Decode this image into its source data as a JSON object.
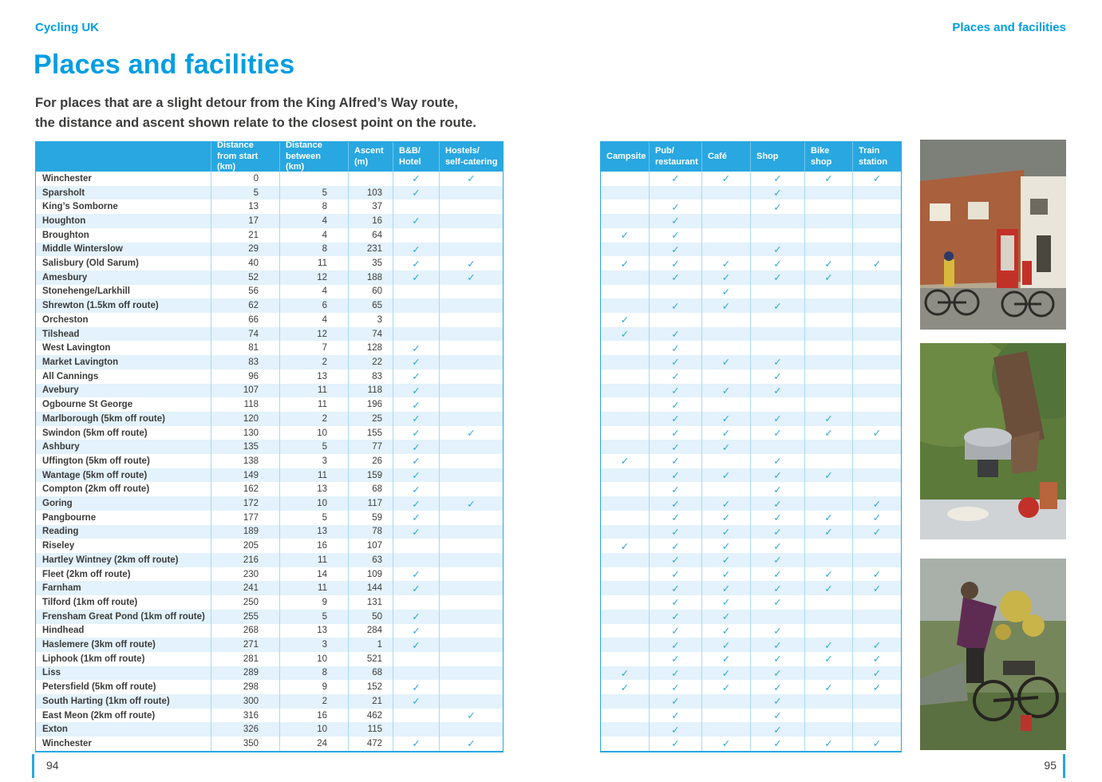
{
  "page": {
    "header_left": "Cycling UK",
    "header_right": "Places and facilities",
    "title": "Places and facilities",
    "intro_line1": "For places that are a slight detour from the King Alfred’s Way route,",
    "intro_line2": "the distance and ascent shown relate to the closest point on the route.",
    "page_number_left": "94",
    "page_number_right": "95",
    "accent_color": "#29A7E0",
    "title_color": "#009EE2",
    "stripe_color": "#E3F2FC",
    "text_color": "#3C3C3B"
  },
  "table": {
    "check_mark": "✓",
    "left_headers": [
      "",
      "Distance from start (km)",
      "Distance between (km)",
      "Ascent (m)",
      "B&B/ Hotel",
      "Hostels/ self-catering"
    ],
    "right_headers": [
      "Campsite",
      "Pub/ restaurant",
      "Café",
      "Shop",
      "Bike shop",
      "Train station"
    ],
    "facility_order": [
      "bb_hotel",
      "hostels_self_catering",
      "campsite",
      "pub_restaurant",
      "cafe",
      "shop",
      "bike_shop",
      "train_station"
    ],
    "rows": [
      {
        "name": "Winchester",
        "from": "0",
        "between": "",
        "ascent": "",
        "fac": [
          1,
          1,
          0,
          1,
          1,
          1,
          1,
          1
        ]
      },
      {
        "name": "Sparsholt",
        "from": "5",
        "between": "5",
        "ascent": "103",
        "fac": [
          1,
          0,
          0,
          0,
          0,
          1,
          0,
          0
        ]
      },
      {
        "name": "King’s Somborne",
        "from": "13",
        "between": "8",
        "ascent": "37",
        "fac": [
          0,
          0,
          0,
          1,
          0,
          1,
          0,
          0
        ]
      },
      {
        "name": "Houghton",
        "from": "17",
        "between": "4",
        "ascent": "16",
        "fac": [
          1,
          0,
          0,
          1,
          0,
          0,
          0,
          0
        ]
      },
      {
        "name": "Broughton",
        "from": "21",
        "between": "4",
        "ascent": "64",
        "fac": [
          0,
          0,
          1,
          1,
          0,
          0,
          0,
          0
        ]
      },
      {
        "name": "Middle Winterslow",
        "from": "29",
        "between": "8",
        "ascent": "231",
        "fac": [
          1,
          0,
          0,
          1,
          0,
          1,
          0,
          0
        ]
      },
      {
        "name": "Salisbury (Old Sarum)",
        "from": "40",
        "between": "11",
        "ascent": "35",
        "fac": [
          1,
          1,
          1,
          1,
          1,
          1,
          1,
          1
        ]
      },
      {
        "name": "Amesbury",
        "from": "52",
        "between": "12",
        "ascent": "188",
        "fac": [
          1,
          1,
          0,
          1,
          1,
          1,
          1,
          0
        ]
      },
      {
        "name": "Stonehenge/Larkhill",
        "from": "56",
        "between": "4",
        "ascent": "60",
        "fac": [
          0,
          0,
          0,
          0,
          1,
          0,
          0,
          0
        ]
      },
      {
        "name": "Shrewton (1.5km off route)",
        "from": "62",
        "between": "6",
        "ascent": "65",
        "fac": [
          0,
          0,
          0,
          1,
          1,
          1,
          0,
          0
        ]
      },
      {
        "name": "Orcheston",
        "from": "66",
        "between": "4",
        "ascent": "3",
        "fac": [
          0,
          0,
          1,
          0,
          0,
          0,
          0,
          0
        ]
      },
      {
        "name": "Tilshead",
        "from": "74",
        "between": "12",
        "ascent": "74",
        "fac": [
          0,
          0,
          1,
          1,
          0,
          0,
          0,
          0
        ]
      },
      {
        "name": "West Lavington",
        "from": "81",
        "between": "7",
        "ascent": "128",
        "fac": [
          1,
          0,
          0,
          1,
          0,
          0,
          0,
          0
        ]
      },
      {
        "name": "Market Lavington",
        "from": "83",
        "between": "2",
        "ascent": "22",
        "fac": [
          1,
          0,
          0,
          1,
          1,
          1,
          0,
          0
        ]
      },
      {
        "name": "All Cannings",
        "from": "96",
        "between": "13",
        "ascent": "83",
        "fac": [
          1,
          0,
          0,
          1,
          0,
          1,
          0,
          0
        ]
      },
      {
        "name": "Avebury",
        "from": "107",
        "between": "11",
        "ascent": "118",
        "fac": [
          1,
          0,
          0,
          1,
          1,
          1,
          0,
          0
        ]
      },
      {
        "name": "Ogbourne St George",
        "from": "118",
        "between": "11",
        "ascent": "196",
        "fac": [
          1,
          0,
          0,
          1,
          0,
          0,
          0,
          0
        ]
      },
      {
        "name": "Marlborough (5km off route)",
        "from": "120",
        "between": "2",
        "ascent": "25",
        "fac": [
          1,
          0,
          0,
          1,
          1,
          1,
          1,
          0
        ]
      },
      {
        "name": "Swindon (5km off route)",
        "from": "130",
        "between": "10",
        "ascent": "155",
        "fac": [
          1,
          1,
          0,
          1,
          1,
          1,
          1,
          1
        ]
      },
      {
        "name": "Ashbury",
        "from": "135",
        "between": "5",
        "ascent": "77",
        "fac": [
          1,
          0,
          0,
          1,
          1,
          0,
          0,
          0
        ]
      },
      {
        "name": "Uffington (5km off route)",
        "from": "138",
        "between": "3",
        "ascent": "26",
        "fac": [
          1,
          0,
          1,
          1,
          0,
          1,
          0,
          0
        ]
      },
      {
        "name": "Wantage (5km off route)",
        "from": "149",
        "between": "11",
        "ascent": "159",
        "fac": [
          1,
          0,
          0,
          1,
          1,
          1,
          1,
          0
        ]
      },
      {
        "name": "Compton (2km off route)",
        "from": "162",
        "between": "13",
        "ascent": "68",
        "fac": [
          1,
          0,
          0,
          1,
          0,
          1,
          0,
          0
        ]
      },
      {
        "name": "Goring",
        "from": "172",
        "between": "10",
        "ascent": "117",
        "fac": [
          1,
          1,
          0,
          1,
          1,
          1,
          0,
          1
        ]
      },
      {
        "name": "Pangbourne",
        "from": "177",
        "between": "5",
        "ascent": "59",
        "fac": [
          1,
          0,
          0,
          1,
          1,
          1,
          1,
          1
        ]
      },
      {
        "name": "Reading",
        "from": "189",
        "between": "13",
        "ascent": "78",
        "fac": [
          1,
          0,
          0,
          1,
          1,
          1,
          1,
          1
        ]
      },
      {
        "name": "Riseley",
        "from": "205",
        "between": "16",
        "ascent": "107",
        "fac": [
          0,
          0,
          1,
          1,
          1,
          1,
          0,
          0
        ]
      },
      {
        "name": "Hartley Wintney (2km off route)",
        "from": "216",
        "between": "11",
        "ascent": "63",
        "fac": [
          0,
          0,
          0,
          1,
          1,
          1,
          0,
          0
        ]
      },
      {
        "name": "Fleet (2km off route)",
        "from": "230",
        "between": "14",
        "ascent": "109",
        "fac": [
          1,
          0,
          0,
          1,
          1,
          1,
          1,
          1
        ]
      },
      {
        "name": "Farnham",
        "from": "241",
        "between": "11",
        "ascent": "144",
        "fac": [
          1,
          0,
          0,
          1,
          1,
          1,
          1,
          1
        ]
      },
      {
        "name": "Tilford (1km off route)",
        "from": "250",
        "between": "9",
        "ascent": "131",
        "fac": [
          0,
          0,
          0,
          1,
          1,
          1,
          0,
          0
        ]
      },
      {
        "name": "Frensham Great Pond (1km off route)",
        "from": "255",
        "between": "5",
        "ascent": "50",
        "fac": [
          1,
          0,
          0,
          1,
          1,
          0,
          0,
          0
        ]
      },
      {
        "name": "Hindhead",
        "from": "268",
        "between": "13",
        "ascent": "284",
        "fac": [
          1,
          0,
          0,
          1,
          1,
          1,
          0,
          0
        ]
      },
      {
        "name": "Haslemere (3km off route)",
        "from": "271",
        "between": "3",
        "ascent": "1",
        "fac": [
          1,
          0,
          0,
          1,
          1,
          1,
          1,
          1
        ]
      },
      {
        "name": "Liphook (1km off route)",
        "from": "281",
        "between": "10",
        "ascent": "521",
        "fac": [
          0,
          0,
          0,
          1,
          1,
          1,
          1,
          1
        ]
      },
      {
        "name": "Liss",
        "from": "289",
        "between": "8",
        "ascent": "68",
        "fac": [
          0,
          0,
          1,
          1,
          1,
          1,
          0,
          1
        ]
      },
      {
        "name": "Petersfield (5km off route)",
        "from": "298",
        "between": "9",
        "ascent": "152",
        "fac": [
          1,
          0,
          1,
          1,
          1,
          1,
          1,
          1
        ]
      },
      {
        "name": "South Harting (1km off route)",
        "from": "300",
        "between": "2",
        "ascent": "21",
        "fac": [
          1,
          0,
          0,
          1,
          0,
          1,
          0,
          0
        ]
      },
      {
        "name": "East Meon (2km off route)",
        "from": "316",
        "between": "16",
        "ascent": "462",
        "fac": [
          0,
          1,
          0,
          1,
          0,
          1,
          0,
          0
        ]
      },
      {
        "name": "Exton",
        "from": "326",
        "between": "10",
        "ascent": "115",
        "fac": [
          0,
          0,
          0,
          1,
          0,
          1,
          0,
          0
        ]
      },
      {
        "name": "Winchester",
        "from": "350",
        "between": "24",
        "ascent": "472",
        "fac": [
          1,
          1,
          0,
          1,
          1,
          1,
          1,
          1
        ]
      }
    ]
  },
  "photos": [
    {
      "label": "cyclists by red phone box in village"
    },
    {
      "label": "cooking on a camp stove"
    },
    {
      "label": "cyclist with loaded bike at campsite"
    }
  ]
}
